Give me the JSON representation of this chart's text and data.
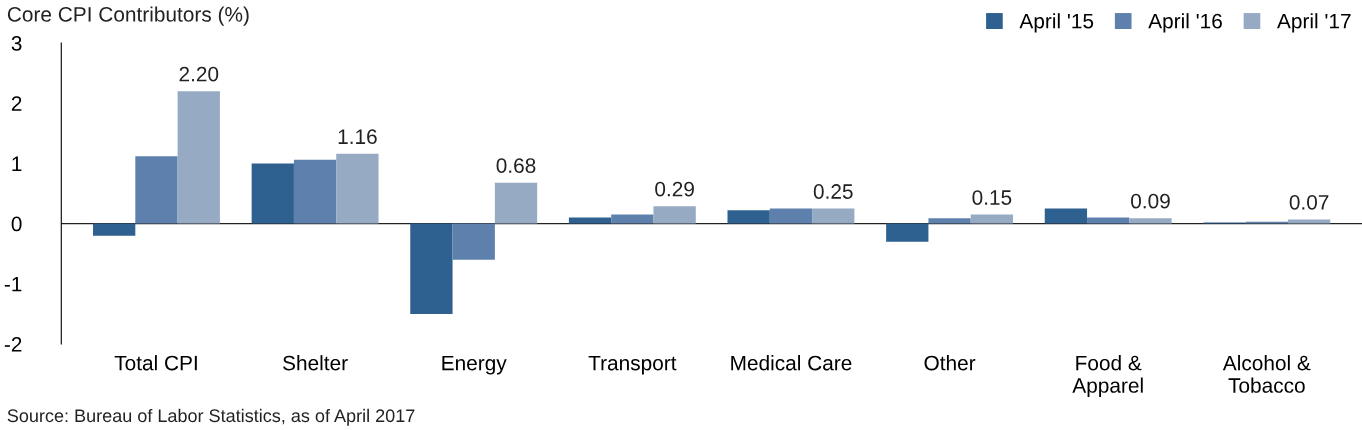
{
  "chart_data": {
    "type": "bar",
    "title": "Core CPI Contributors (%)",
    "categories": [
      "Total CPI",
      "Shelter",
      "Energy",
      "Transport",
      "Medical Care",
      "Other",
      "Food &\nApparel",
      "Alcohol &\nTobacco"
    ],
    "series": [
      {
        "name": "April '15",
        "color": "#2e6190",
        "values": [
          -0.2,
          1.0,
          -1.5,
          0.1,
          0.22,
          -0.3,
          0.25,
          0.02
        ]
      },
      {
        "name": "April '16",
        "color": "#5e80ad",
        "values": [
          1.12,
          1.06,
          -0.6,
          0.15,
          0.25,
          0.09,
          0.1,
          0.03
        ]
      },
      {
        "name": "April '17",
        "color": "#96aac4",
        "values": [
          2.2,
          1.16,
          0.68,
          0.29,
          0.25,
          0.15,
          0.09,
          0.07
        ],
        "value_labels": [
          "2.20",
          "1.16",
          "0.68",
          "0.29",
          "0.25",
          "0.15",
          "0.09",
          "0.07"
        ]
      }
    ],
    "ylim": [
      -2,
      3
    ],
    "yticks": [
      -2,
      -1,
      0,
      1,
      2,
      3
    ],
    "ref_lines": [
      {
        "axis": "y",
        "value": 0,
        "color": "#222222"
      }
    ],
    "grid": false,
    "legend": "top right",
    "annotations": [
      "Source: Bureau of Labor Statistics, as of April 2017"
    ]
  }
}
